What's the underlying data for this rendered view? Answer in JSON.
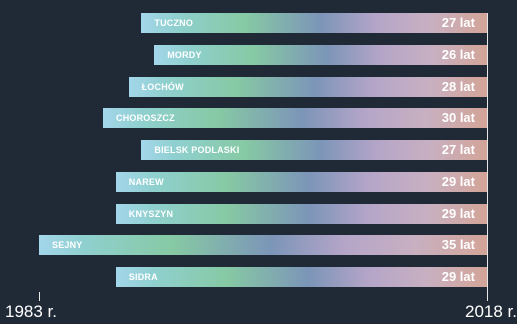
{
  "chart_data": {
    "type": "bar",
    "orientation": "horizontal",
    "categories": [
      "TUCZNO",
      "MORDY",
      "ŁOCHÓW",
      "CHOROSZCZ",
      "BIELSK PODLASKI",
      "NAREW",
      "KNYSZYN",
      "SEJNY",
      "SIDRA"
    ],
    "values": [
      27,
      26,
      28,
      30,
      27,
      29,
      29,
      35,
      29
    ],
    "value_labels": [
      "27 lat",
      "26 lat",
      "28 lat",
      "30 lat",
      "27 lat",
      "29 lat",
      "29 lat",
      "35 lat",
      "29 lat"
    ],
    "xlim": [
      1983,
      2018
    ],
    "x_axis_labels": [
      "1983 r.",
      "2018 r."
    ],
    "bar_end": 2018,
    "grid": false,
    "legend": "none"
  },
  "colors": {
    "background": "#202a37",
    "bar_gradient": [
      "#a3d6ea",
      "#86c9a4",
      "#7c95b8",
      "#b4a5c8",
      "#d3a497"
    ],
    "text": "#ffffff"
  }
}
